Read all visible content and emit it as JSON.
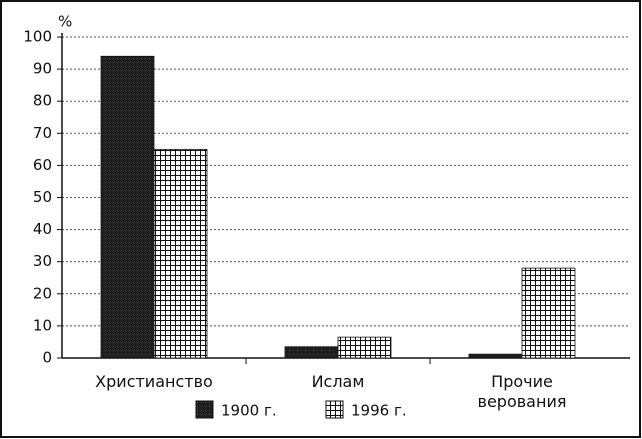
{
  "chart_data": {
    "type": "bar",
    "ylabel": "%",
    "categories": [
      "Христианство",
      "Ислам",
      "Прочие верования"
    ],
    "series": [
      {
        "name": "1900 г.",
        "color": "#1e1e1e",
        "values": [
          94,
          3.5,
          1.2
        ]
      },
      {
        "name": "1996 г.",
        "color": "#ffffff",
        "values": [
          65,
          6.5,
          28
        ]
      }
    ],
    "ylim": [
      0,
      100
    ],
    "yticks": [
      0,
      10,
      20,
      30,
      40,
      50,
      60,
      70,
      80,
      90,
      100
    ],
    "grid": true
  }
}
